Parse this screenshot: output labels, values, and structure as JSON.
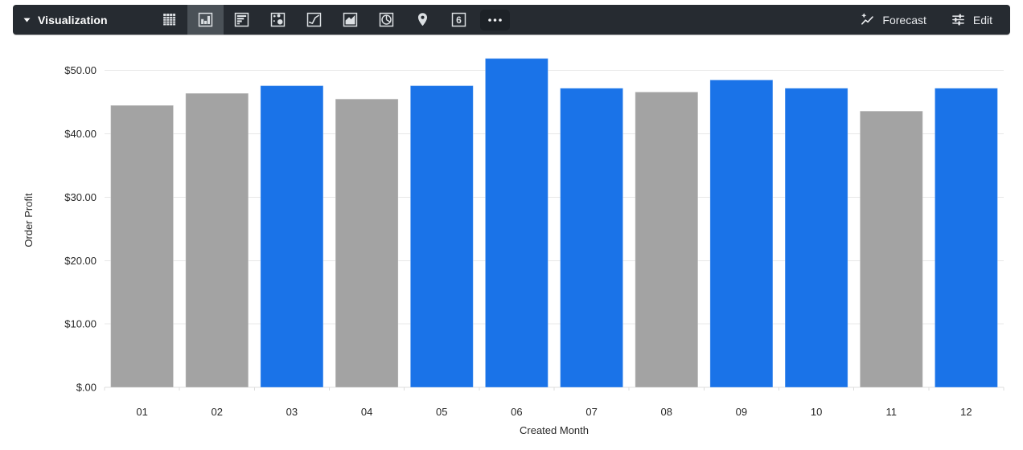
{
  "toolbar": {
    "title": "Visualization",
    "viz_icons": [
      {
        "icon": "table-chart-icon",
        "selected": false
      },
      {
        "icon": "column-chart-icon",
        "selected": true
      },
      {
        "icon": "bar-chart-icon",
        "selected": false
      },
      {
        "icon": "scatter-chart-icon",
        "selected": false
      },
      {
        "icon": "line-chart-icon",
        "selected": false
      },
      {
        "icon": "area-chart-icon",
        "selected": false
      },
      {
        "icon": "pie-chart-icon",
        "selected": false
      },
      {
        "icon": "map-pin-icon",
        "selected": false
      },
      {
        "icon": "single-value-icon",
        "selected": false,
        "glyph": "6"
      },
      {
        "icon": "more-options-icon",
        "selected": false
      }
    ],
    "forecast_label": "Forecast",
    "edit_label": "Edit"
  },
  "chart_data": {
    "type": "bar",
    "title": "",
    "xlabel": "Created Month",
    "ylabel": "Order Profit",
    "categories": [
      "01",
      "02",
      "03",
      "04",
      "05",
      "06",
      "07",
      "08",
      "09",
      "10",
      "11",
      "12"
    ],
    "values": [
      44.5,
      46.4,
      47.6,
      45.5,
      47.6,
      51.9,
      47.2,
      46.6,
      48.5,
      47.2,
      43.6,
      47.2
    ],
    "bar_color_keys": [
      "gray",
      "gray",
      "blue",
      "gray",
      "blue",
      "blue",
      "blue",
      "gray",
      "blue",
      "blue",
      "gray",
      "blue"
    ],
    "palette": {
      "blue": "#1A73E8",
      "gray": "#A3A3A3"
    },
    "ylim": [
      0,
      52.75
    ],
    "yticks": [
      0,
      10,
      20,
      30,
      40,
      50
    ],
    "ytick_labels": [
      "$.00",
      "$10.00",
      "$20.00",
      "$30.00",
      "$40.00",
      "$50.00"
    ],
    "grid": true,
    "legend": "none"
  }
}
